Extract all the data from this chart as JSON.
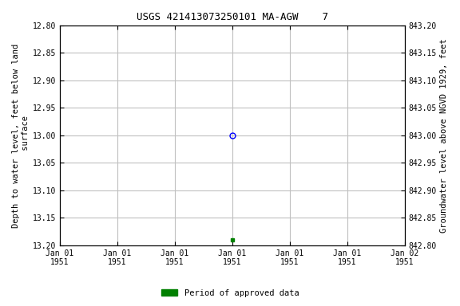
{
  "title": "USGS 421413073250101 MA-AGW    7",
  "ylabel_left": "Depth to water level, feet below land\n surface",
  "ylabel_right": "Groundwater level above NGVD 1929, feet",
  "ylim_left": [
    12.8,
    13.2
  ],
  "ylim_right": [
    842.8,
    843.2
  ],
  "yticks_left": [
    12.8,
    12.85,
    12.9,
    12.95,
    13.0,
    13.05,
    13.1,
    13.15,
    13.2
  ],
  "yticks_right": [
    842.8,
    842.85,
    842.9,
    842.95,
    843.0,
    843.05,
    843.1,
    843.15,
    843.2
  ],
  "xlim": [
    0,
    6
  ],
  "xticks": [
    0,
    1,
    2,
    3,
    4,
    5,
    6
  ],
  "xticklabels": [
    "Jan 01\n1951",
    "Jan 01\n1951",
    "Jan 01\n1951",
    "Jan 01\n1951",
    "Jan 01\n1951",
    "Jan 01\n1951",
    "Jan 02\n1951"
  ],
  "point_open_x": 3,
  "point_open_y": 13.0,
  "point_filled_x": 3,
  "point_filled_y": 13.19,
  "open_marker_color": "#0000ff",
  "filled_marker_color": "#008000",
  "legend_label": "Period of approved data",
  "legend_color": "#008000",
  "background_color": "#ffffff",
  "grid_color": "#c0c0c0",
  "font_family": "monospace",
  "title_fontsize": 9,
  "label_fontsize": 7.5,
  "tick_fontsize": 7
}
